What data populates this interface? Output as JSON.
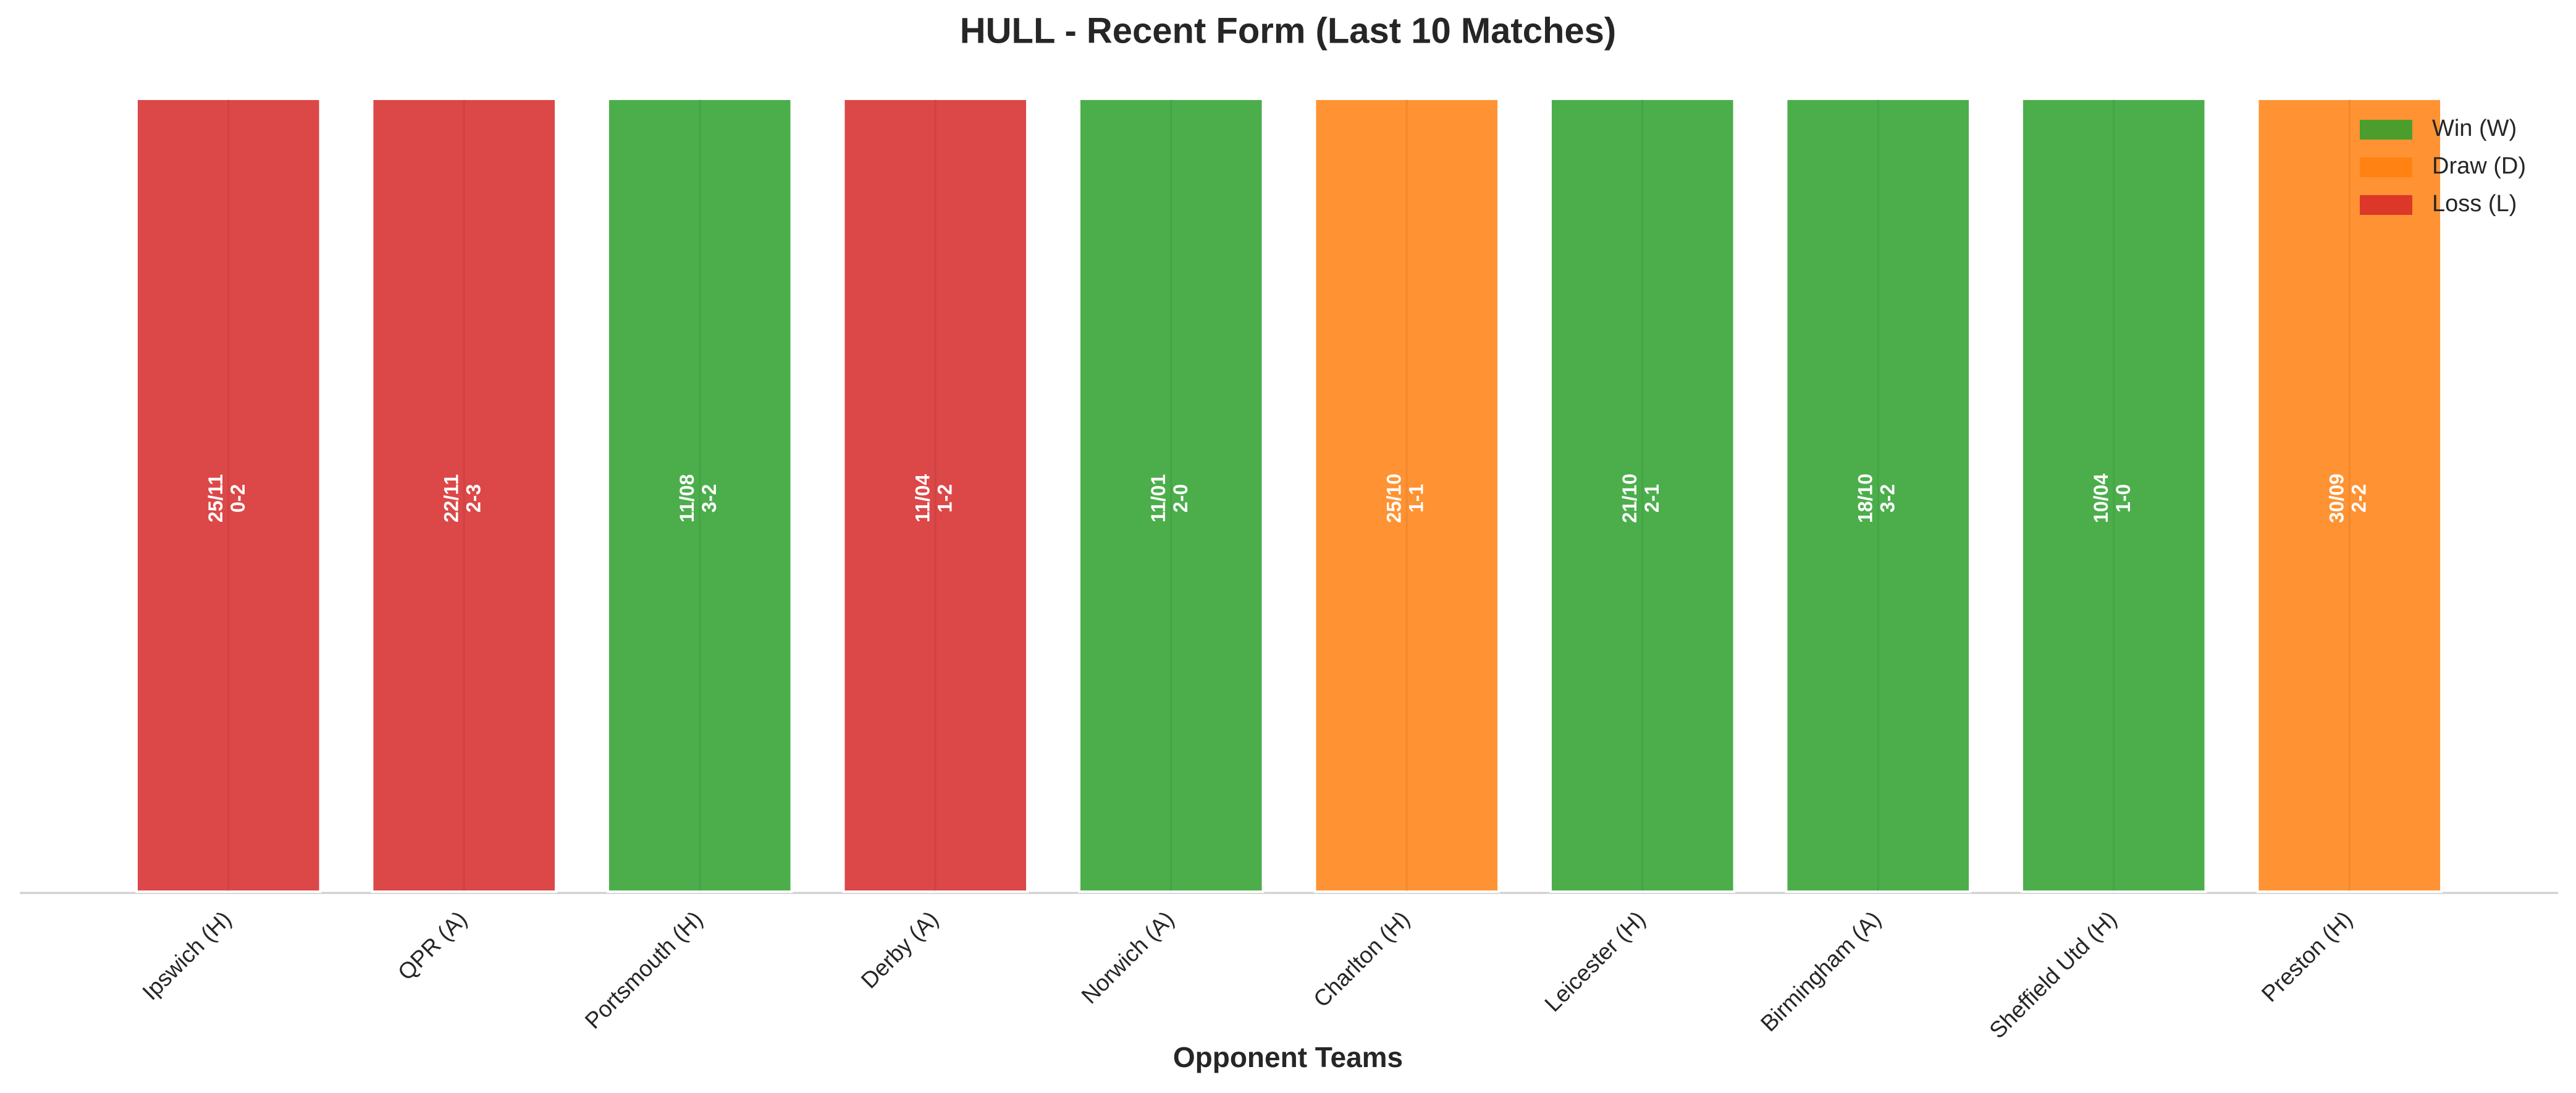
{
  "chart_data": {
    "type": "bar",
    "title": "HULL - Recent Form (Last 10 Matches)",
    "x_label": "Opponent Teams",
    "categories": [
      "Ipswich (H)",
      "QPR (A)",
      "Portsmouth (H)",
      "Derby (A)",
      "Norwich (A)",
      "Charlton (H)",
      "Leicester (H)",
      "Birmingham (A)",
      "Sheffield Utd (H)",
      "Preston (H)"
    ],
    "values": [
      1,
      1,
      1,
      1,
      1,
      1,
      1,
      1,
      1,
      1
    ],
    "dates": [
      "25/11",
      "22/11",
      "11/08",
      "11/04",
      "11/01",
      "25/10",
      "21/10",
      "18/10",
      "10/04",
      "30/09"
    ],
    "scores": [
      "0-2",
      "2-3",
      "3-2",
      "1-2",
      "2-0",
      "1-1",
      "2-1",
      "3-2",
      "1-0",
      "2-2"
    ],
    "colors": [
      "#d62728",
      "#d62728",
      "#2ca02c",
      "#d62728",
      "#2ca02c",
      "#ff7f0e",
      "#2ca02c",
      "#2ca02c",
      "#2ca02c",
      "#ff7f0e"
    ],
    "ylim": [
      0,
      1
    ],
    "legend": [
      {
        "name": "Win (W)",
        "color": "#2ca02c"
      },
      {
        "name": "Draw (D)",
        "color": "#ff7f0e"
      },
      {
        "name": "Loss (L)",
        "color": "#d62728"
      }
    ],
    "legend_position": "upper right"
  }
}
